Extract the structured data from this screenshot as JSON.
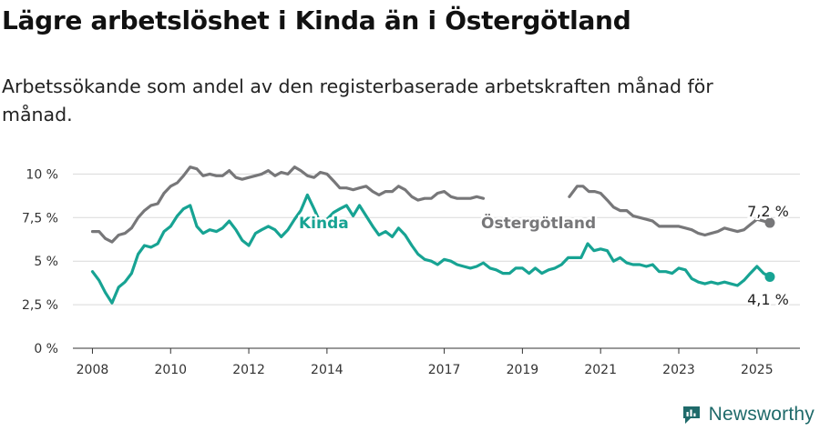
{
  "title": "Lägre arbetslöshet i Kinda än i Östergötland",
  "subtitle": "Arbetssökande som andel av den registerbaserade arbetskraften månad för månad.",
  "brand": {
    "name": "Newsworthy",
    "icon": "newsworthy-logo-icon",
    "color": "#1f6a6a"
  },
  "chart_data": {
    "type": "line",
    "xlim": [
      2007.5,
      2026.1
    ],
    "ylim": [
      0,
      10.7
    ],
    "grid": true,
    "x_ticks": [
      2008,
      2010,
      2012,
      2014,
      2017,
      2019,
      2021,
      2023,
      2025
    ],
    "y_ticks": [
      {
        "value": 0,
        "label": "0 %"
      },
      {
        "value": 2.5,
        "label": "2,5 %"
      },
      {
        "value": 5,
        "label": "5 %"
      },
      {
        "value": 7.5,
        "label": "7,5 %"
      },
      {
        "value": 10,
        "label": "10 %"
      }
    ],
    "series": [
      {
        "name": "Östergötland",
        "color": "#777779",
        "end_label": "7,2 %",
        "points": [
          [
            2008.0,
            6.7
          ],
          [
            2008.17,
            6.7
          ],
          [
            2008.33,
            6.3
          ],
          [
            2008.5,
            6.1
          ],
          [
            2008.67,
            6.5
          ],
          [
            2008.83,
            6.6
          ],
          [
            2009.0,
            6.9
          ],
          [
            2009.17,
            7.5
          ],
          [
            2009.33,
            7.9
          ],
          [
            2009.5,
            8.2
          ],
          [
            2009.67,
            8.3
          ],
          [
            2009.83,
            8.9
          ],
          [
            2010.0,
            9.3
          ],
          [
            2010.17,
            9.5
          ],
          [
            2010.33,
            9.9
          ],
          [
            2010.5,
            10.4
          ],
          [
            2010.67,
            10.3
          ],
          [
            2010.83,
            9.9
          ],
          [
            2011.0,
            10.0
          ],
          [
            2011.17,
            9.9
          ],
          [
            2011.33,
            9.9
          ],
          [
            2011.5,
            10.2
          ],
          [
            2011.67,
            9.8
          ],
          [
            2011.83,
            9.7
          ],
          [
            2012.0,
            9.8
          ],
          [
            2012.17,
            9.9
          ],
          [
            2012.33,
            10.0
          ],
          [
            2012.5,
            10.2
          ],
          [
            2012.67,
            9.9
          ],
          [
            2012.83,
            10.1
          ],
          [
            2013.0,
            10.0
          ],
          [
            2013.17,
            10.4
          ],
          [
            2013.33,
            10.2
          ],
          [
            2013.5,
            9.9
          ],
          [
            2013.67,
            9.8
          ],
          [
            2013.83,
            10.1
          ],
          [
            2014.0,
            10.0
          ],
          [
            2014.17,
            9.6
          ],
          [
            2014.33,
            9.2
          ],
          [
            2014.5,
            9.2
          ],
          [
            2014.67,
            9.1
          ],
          [
            2014.83,
            9.2
          ],
          [
            2015.0,
            9.3
          ],
          [
            2015.17,
            9.0
          ],
          [
            2015.33,
            8.8
          ],
          [
            2015.5,
            9.0
          ],
          [
            2015.67,
            9.0
          ],
          [
            2015.83,
            9.3
          ],
          [
            2016.0,
            9.1
          ],
          [
            2016.17,
            8.7
          ],
          [
            2016.33,
            8.5
          ],
          [
            2016.5,
            8.6
          ],
          [
            2016.67,
            8.6
          ],
          [
            2016.83,
            8.9
          ],
          [
            2017.0,
            9.0
          ],
          [
            2017.17,
            8.7
          ],
          [
            2017.33,
            8.6
          ],
          [
            2017.5,
            8.6
          ],
          [
            2017.67,
            8.6
          ],
          [
            2017.83,
            8.7
          ],
          [
            2018.0,
            8.6
          ]
        ],
        "points_2": [
          [
            2020.2,
            8.7
          ],
          [
            2020.4,
            9.3
          ],
          [
            2020.55,
            9.3
          ],
          [
            2020.7,
            9.0
          ],
          [
            2020.85,
            9.0
          ],
          [
            2021.0,
            8.9
          ],
          [
            2021.17,
            8.5
          ],
          [
            2021.33,
            8.1
          ],
          [
            2021.5,
            7.9
          ],
          [
            2021.67,
            7.9
          ],
          [
            2021.83,
            7.6
          ],
          [
            2022.0,
            7.5
          ],
          [
            2022.17,
            7.4
          ],
          [
            2022.33,
            7.3
          ],
          [
            2022.5,
            7.0
          ],
          [
            2022.67,
            7.0
          ],
          [
            2022.83,
            7.0
          ],
          [
            2023.0,
            7.0
          ],
          [
            2023.17,
            6.9
          ],
          [
            2023.33,
            6.8
          ],
          [
            2023.5,
            6.6
          ],
          [
            2023.67,
            6.5
          ],
          [
            2023.83,
            6.6
          ],
          [
            2024.0,
            6.7
          ],
          [
            2024.17,
            6.9
          ],
          [
            2024.33,
            6.8
          ],
          [
            2024.5,
            6.7
          ],
          [
            2024.67,
            6.8
          ],
          [
            2024.83,
            7.1
          ],
          [
            2025.0,
            7.4
          ],
          [
            2025.17,
            7.3
          ],
          [
            2025.33,
            7.2
          ]
        ]
      },
      {
        "name": "Kinda",
        "color": "#17a393",
        "end_label": "4,1 %",
        "points": [
          [
            2008.0,
            4.4
          ],
          [
            2008.17,
            3.9
          ],
          [
            2008.33,
            3.2
          ],
          [
            2008.5,
            2.6
          ],
          [
            2008.67,
            3.5
          ],
          [
            2008.83,
            3.8
          ],
          [
            2009.0,
            4.3
          ],
          [
            2009.17,
            5.4
          ],
          [
            2009.33,
            5.9
          ],
          [
            2009.5,
            5.8
          ],
          [
            2009.67,
            6.0
          ],
          [
            2009.83,
            6.7
          ],
          [
            2010.0,
            7.0
          ],
          [
            2010.17,
            7.6
          ],
          [
            2010.33,
            8.0
          ],
          [
            2010.5,
            8.2
          ],
          [
            2010.67,
            7.0
          ],
          [
            2010.83,
            6.6
          ],
          [
            2011.0,
            6.8
          ],
          [
            2011.17,
            6.7
          ],
          [
            2011.33,
            6.9
          ],
          [
            2011.5,
            7.3
          ],
          [
            2011.67,
            6.8
          ],
          [
            2011.83,
            6.2
          ],
          [
            2012.0,
            5.9
          ],
          [
            2012.17,
            6.6
          ],
          [
            2012.33,
            6.8
          ],
          [
            2012.5,
            7.0
          ],
          [
            2012.67,
            6.8
          ],
          [
            2012.83,
            6.4
          ],
          [
            2013.0,
            6.8
          ],
          [
            2013.17,
            7.4
          ],
          [
            2013.33,
            7.9
          ],
          [
            2013.5,
            8.8
          ],
          [
            2013.67,
            8.0
          ],
          [
            2013.83,
            7.2
          ],
          [
            2014.0,
            7.4
          ],
          [
            2014.17,
            7.8
          ],
          [
            2014.33,
            8.0
          ],
          [
            2014.5,
            8.2
          ],
          [
            2014.67,
            7.6
          ],
          [
            2014.83,
            8.2
          ],
          [
            2015.0,
            7.6
          ],
          [
            2015.17,
            7.0
          ],
          [
            2015.33,
            6.5
          ],
          [
            2015.5,
            6.7
          ],
          [
            2015.67,
            6.4
          ],
          [
            2015.83,
            6.9
          ],
          [
            2016.0,
            6.5
          ],
          [
            2016.17,
            5.9
          ],
          [
            2016.33,
            5.4
          ],
          [
            2016.5,
            5.1
          ],
          [
            2016.67,
            5.0
          ],
          [
            2016.83,
            4.8
          ],
          [
            2017.0,
            5.1
          ],
          [
            2017.17,
            5.0
          ],
          [
            2017.33,
            4.8
          ],
          [
            2017.5,
            4.7
          ],
          [
            2017.67,
            4.6
          ],
          [
            2017.83,
            4.7
          ],
          [
            2018.0,
            4.9
          ],
          [
            2018.17,
            4.6
          ],
          [
            2018.33,
            4.5
          ],
          [
            2018.5,
            4.3
          ],
          [
            2018.67,
            4.3
          ],
          [
            2018.83,
            4.6
          ],
          [
            2019.0,
            4.6
          ],
          [
            2019.17,
            4.3
          ],
          [
            2019.33,
            4.6
          ],
          [
            2019.5,
            4.3
          ],
          [
            2019.67,
            4.5
          ],
          [
            2019.83,
            4.6
          ],
          [
            2020.0,
            4.8
          ],
          [
            2020.17,
            5.2
          ],
          [
            2020.33,
            5.2
          ],
          [
            2020.5,
            5.2
          ],
          [
            2020.67,
            6.0
          ],
          [
            2020.83,
            5.6
          ],
          [
            2021.0,
            5.7
          ],
          [
            2021.17,
            5.6
          ],
          [
            2021.33,
            5.0
          ],
          [
            2021.5,
            5.2
          ],
          [
            2021.67,
            4.9
          ],
          [
            2021.83,
            4.8
          ],
          [
            2022.0,
            4.8
          ],
          [
            2022.17,
            4.7
          ],
          [
            2022.33,
            4.8
          ],
          [
            2022.5,
            4.4
          ],
          [
            2022.67,
            4.4
          ],
          [
            2022.83,
            4.3
          ],
          [
            2023.0,
            4.6
          ],
          [
            2023.17,
            4.5
          ],
          [
            2023.33,
            4.0
          ],
          [
            2023.5,
            3.8
          ],
          [
            2023.67,
            3.7
          ],
          [
            2023.83,
            3.8
          ],
          [
            2024.0,
            3.7
          ],
          [
            2024.17,
            3.8
          ],
          [
            2024.33,
            3.7
          ],
          [
            2024.5,
            3.6
          ],
          [
            2024.67,
            3.9
          ],
          [
            2024.83,
            4.3
          ],
          [
            2025.0,
            4.7
          ],
          [
            2025.17,
            4.3
          ],
          [
            2025.33,
            4.1
          ]
        ]
      }
    ],
    "series_labels": [
      {
        "series": "Kinda",
        "text": "Kinda"
      },
      {
        "series": "Östergötland",
        "text": "Östergötland"
      }
    ]
  }
}
